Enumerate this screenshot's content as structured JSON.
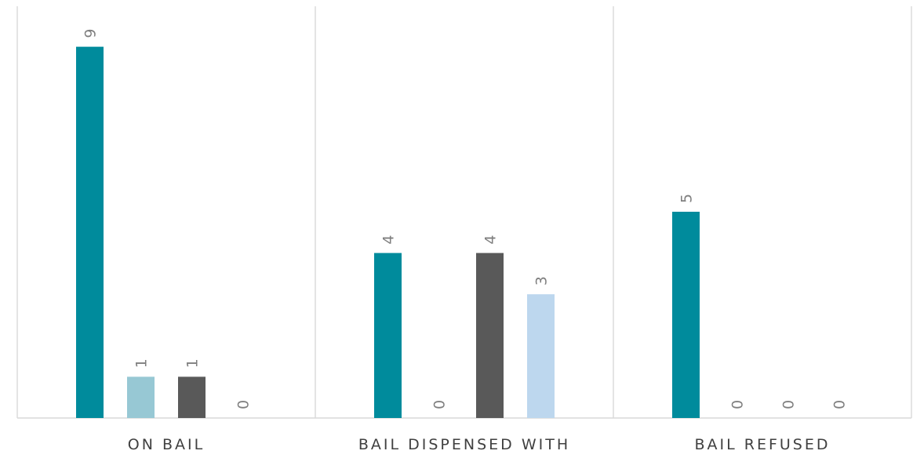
{
  "chart_data": {
    "type": "bar",
    "categories": [
      "ON BAIL",
      "BAIL DISPENSED WITH",
      "BAIL REFUSED"
    ],
    "series": [
      {
        "values": [
          9,
          4,
          5
        ],
        "color": "#008b9c"
      },
      {
        "values": [
          1,
          0,
          0
        ],
        "color": "#97c8d4"
      },
      {
        "values": [
          1,
          4,
          0
        ],
        "color": "#595959"
      },
      {
        "values": [
          0,
          3,
          0
        ],
        "color": "#bdd7ee"
      }
    ],
    "ylim": [
      0,
      10
    ],
    "grid": "vertical category separators",
    "legend": "none",
    "data_labels": true,
    "title": "",
    "xlabel": "",
    "ylabel": ""
  }
}
